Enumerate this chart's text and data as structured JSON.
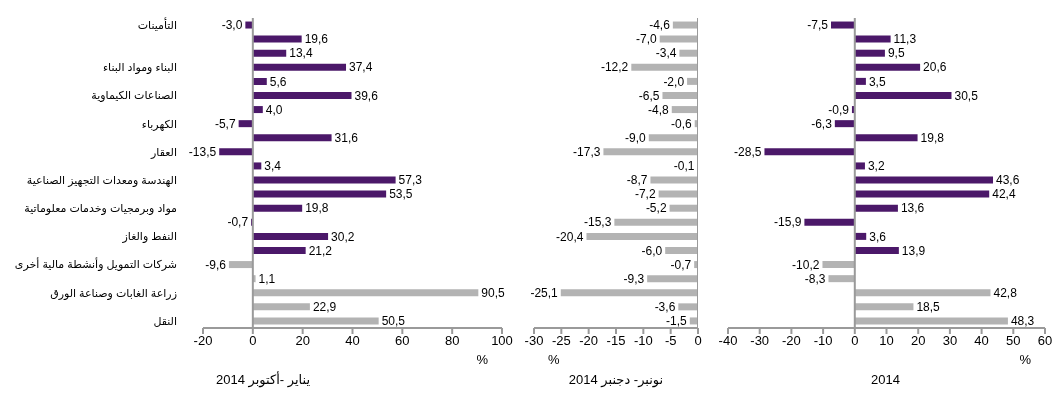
{
  "chart_data": [
    {
      "type": "bar",
      "orientation": "horizontal",
      "title": "يناير -أكتوبر 2014",
      "xlabel": "%",
      "categories": [
        "التأمينات",
        null,
        null,
        "البناء ومواد البناء",
        null,
        "الصناعات الكيماوية",
        null,
        "الكهرباء",
        null,
        "العقار",
        null,
        "الهندسة ومعدات التجهيز الصناعية",
        null,
        "مواد وبرمجيات وخدمات معلوماتية",
        null,
        "النفط والغاز",
        null,
        "شركات التمويل وأنشطة مالية أخرى",
        null,
        "زراعة الغابات وصناعة الورق",
        null,
        "النقل"
      ],
      "values": [
        -3.0,
        19.6,
        13.4,
        37.4,
        5.6,
        39.6,
        4.0,
        -5.7,
        31.6,
        -13.5,
        3.4,
        57.3,
        53.5,
        19.8,
        -0.7,
        30.2,
        21.2,
        -9.6,
        1.1,
        90.5,
        22.9,
        50.5
      ],
      "value_labels": [
        "-3,0",
        "19,6",
        "13,4",
        "37,4",
        "5,6",
        "39,6",
        "4,0",
        "-5,7",
        "31,6",
        "-13,5",
        "3,4",
        "57,3",
        "53,5",
        "19,8",
        "-0,7",
        "30,2",
        "21,2",
        "-9,6",
        "1,1",
        "90,5",
        "22,9",
        "50,5"
      ],
      "colors": [
        "#4b1869",
        "#4b1869",
        "#4b1869",
        "#4b1869",
        "#4b1869",
        "#4b1869",
        "#4b1869",
        "#4b1869",
        "#4b1869",
        "#4b1869",
        "#4b1869",
        "#4b1869",
        "#4b1869",
        "#4b1869",
        "#4b1869",
        "#4b1869",
        "#4b1869",
        "#b3b3b3",
        "#b3b3b3",
        "#b3b3b3",
        "#b3b3b3",
        "#b3b3b3"
      ],
      "xlim": [
        -20,
        100
      ],
      "xticks": [
        -20,
        0,
        20,
        40,
        60,
        80,
        100
      ]
    },
    {
      "type": "bar",
      "orientation": "horizontal",
      "title": "نونبر- دجنبر 2014",
      "xlabel": "%",
      "tick_labels": "x",
      "categories": [
        null,
        null,
        null,
        null,
        null,
        null,
        null,
        null,
        null,
        null,
        null,
        null,
        null,
        null,
        null,
        null,
        null,
        null,
        null,
        null,
        null,
        null
      ],
      "values": [
        -4.6,
        -7.0,
        -3.4,
        -12.2,
        -2.0,
        -6.5,
        -4.8,
        -0.6,
        -9.0,
        -17.3,
        -0.1,
        -8.7,
        -7.2,
        -5.2,
        -15.3,
        -20.4,
        -6.0,
        -0.7,
        -9.3,
        -25.1,
        -3.6,
        -1.5
      ],
      "value_labels": [
        "-4,6",
        "-7,0",
        "-3,4",
        "-12,2",
        "-2,0",
        "-6,5",
        "-4,8",
        "-0,6",
        "-9,0",
        "-17,3",
        "-0,1",
        "-8,7",
        "-7,2",
        "-5,2",
        "-15,3",
        "-20,4",
        "-6,0",
        "-0,7",
        "-9,3",
        "-25,1",
        "-3,6",
        "-1,5"
      ],
      "colors": [
        "#b3b3b3",
        "#b3b3b3",
        "#b3b3b3",
        "#b3b3b3",
        "#b3b3b3",
        "#b3b3b3",
        "#b3b3b3",
        "#b3b3b3",
        "#b3b3b3",
        "#b3b3b3",
        "#b3b3b3",
        "#b3b3b3",
        "#b3b3b3",
        "#b3b3b3",
        "#b3b3b3",
        "#b3b3b3",
        "#b3b3b3",
        "#b3b3b3",
        "#b3b3b3",
        "#b3b3b3",
        "#b3b3b3",
        "#b3b3b3"
      ],
      "xlim": [
        -30,
        0
      ],
      "xticks": [
        -30,
        -25,
        -20,
        -15,
        -10,
        -5,
        0
      ]
    },
    {
      "type": "bar",
      "orientation": "horizontal",
      "title": "2014",
      "xlabel": "%",
      "tick_labels": "x",
      "categories": [
        null,
        null,
        null,
        null,
        null,
        null,
        null,
        null,
        null,
        null,
        null,
        null,
        null,
        null,
        null,
        null,
        null,
        null,
        null,
        null,
        null,
        null
      ],
      "values": [
        -7.5,
        11.3,
        9.5,
        20.6,
        3.5,
        30.5,
        -0.9,
        -6.3,
        19.8,
        -28.5,
        3.2,
        43.6,
        42.4,
        13.6,
        -15.9,
        3.6,
        13.9,
        -10.2,
        -8.3,
        42.8,
        18.5,
        48.3
      ],
      "value_labels": [
        "-7,5",
        "11,3",
        "9,5",
        "20,6",
        "3,5",
        "30,5",
        "-0,9",
        "-6,3",
        "19,8",
        "-28,5",
        "3,2",
        "43,6",
        "42,4",
        "13,6",
        "-15,9",
        "3,6",
        "13,9",
        "-10,2",
        "-8,3",
        "42,8",
        "18,5",
        "48,3"
      ],
      "colors": [
        "#4b1869",
        "#4b1869",
        "#4b1869",
        "#4b1869",
        "#4b1869",
        "#4b1869",
        "#4b1869",
        "#4b1869",
        "#4b1869",
        "#4b1869",
        "#4b1869",
        "#4b1869",
        "#4b1869",
        "#4b1869",
        "#4b1869",
        "#4b1869",
        "#4b1869",
        "#b3b3b3",
        "#b3b3b3",
        "#b3b3b3",
        "#b3b3b3",
        "#b3b3b3"
      ],
      "xlim": [
        -40,
        60
      ],
      "xticks": [
        -40,
        -30,
        -20,
        -10,
        0,
        10,
        20,
        30,
        40,
        50,
        60
      ]
    }
  ]
}
